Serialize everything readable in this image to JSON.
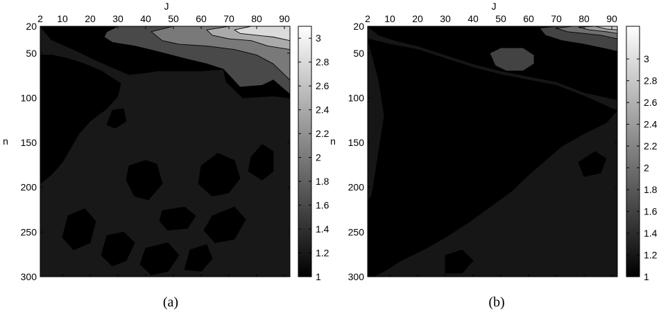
{
  "figure": {
    "caption_a": "(a)",
    "caption_b": "(b)"
  },
  "colormap": {
    "low": "#000000",
    "high": "#ffffff",
    "contour_line": "#000000"
  },
  "chart_data": [
    {
      "type": "heatmap",
      "panel": "(a)",
      "title": "",
      "xlabel": "J",
      "ylabel": "n",
      "x_ticks": [
        2,
        10,
        20,
        30,
        40,
        50,
        60,
        70,
        80,
        90
      ],
      "y_ticks": [
        20,
        50,
        100,
        150,
        200,
        250,
        300
      ],
      "xlim": [
        2,
        92
      ],
      "ylim": [
        20,
        300
      ],
      "y_reversed": true,
      "x_axis_position": "top",
      "colorbar": {
        "ticks": [
          1,
          1.2,
          1.4,
          1.6,
          1.8,
          2,
          2.2,
          2.4,
          2.6,
          2.8,
          3
        ],
        "range": [
          1,
          3.1
        ]
      },
      "contour_levels": [
        1.25,
        1.6,
        2.0,
        2.4,
        2.8
      ],
      "colormap": "gray",
      "grid": false,
      "layer_levels": [
        1.2,
        1.6,
        2.0,
        2.4,
        2.8
      ],
      "regions": [
        {
          "level": 1.2,
          "polygon": [
            [
              2,
              20
            ],
            [
              6,
              35
            ],
            [
              14,
              46
            ],
            [
              22,
              58
            ],
            [
              28,
              66
            ],
            [
              34,
              74
            ],
            [
              40,
              72
            ],
            [
              44,
              70
            ],
            [
              52,
              70
            ],
            [
              60,
              70
            ],
            [
              68,
              68
            ],
            [
              69,
              82
            ],
            [
              75,
              100
            ],
            [
              86,
              98
            ],
            [
              92,
              100
            ],
            [
              92,
              300
            ],
            [
              2,
              300
            ]
          ]
        },
        {
          "level": 1.6,
          "polygon": [
            [
              26,
              26
            ],
            [
              30,
              20
            ],
            [
              92,
              20
            ],
            [
              92,
              96
            ],
            [
              86,
              80
            ],
            [
              82,
              86
            ],
            [
              74,
              88
            ],
            [
              68,
              68
            ],
            [
              62,
              62
            ],
            [
              54,
              56
            ],
            [
              44,
              48
            ],
            [
              36,
              42
            ],
            [
              28,
              38
            ],
            [
              25,
              32
            ]
          ]
        },
        {
          "level": 2.0,
          "polygon": [
            [
              42,
              26
            ],
            [
              50,
              20
            ],
            [
              92,
              20
            ],
            [
              92,
              80
            ],
            [
              86,
              62
            ],
            [
              80,
              52
            ],
            [
              72,
              46
            ],
            [
              62,
              42
            ],
            [
              52,
              40
            ],
            [
              46,
              36
            ]
          ]
        },
        {
          "level": 2.4,
          "polygon": [
            [
              62,
              24
            ],
            [
              70,
              20
            ],
            [
              92,
              20
            ],
            [
              92,
              46
            ],
            [
              84,
              42
            ],
            [
              78,
              36
            ],
            [
              70,
              34
            ],
            [
              64,
              30
            ]
          ]
        },
        {
          "level": 2.8,
          "polygon": [
            [
              72,
              24
            ],
            [
              78,
              20
            ],
            [
              92,
              20
            ],
            [
              92,
              36
            ],
            [
              86,
              32
            ],
            [
              80,
              30
            ],
            [
              74,
              28
            ]
          ]
        }
      ],
      "dark_blobs": [
        {
          "level": 1.0,
          "polygon": [
            [
              2,
              52
            ],
            [
              6,
              52
            ],
            [
              12,
              56
            ],
            [
              18,
              62
            ],
            [
              24,
              70
            ],
            [
              28,
              78
            ],
            [
              31,
              84
            ],
            [
              30,
              98
            ],
            [
              26,
              112
            ],
            [
              20,
              126
            ],
            [
              16,
              140
            ],
            [
              13,
              156
            ],
            [
              10,
              172
            ],
            [
              6,
              186
            ],
            [
              2,
              196
            ]
          ]
        },
        {
          "level": 1.0,
          "polygon": [
            [
              28,
              114
            ],
            [
              32,
              112
            ],
            [
              33,
              126
            ],
            [
              29,
              134
            ],
            [
              26,
              130
            ]
          ]
        },
        {
          "level": 1.0,
          "polygon": [
            [
              34,
              176
            ],
            [
              40,
              170
            ],
            [
              44,
              174
            ],
            [
              46,
              196
            ],
            [
              41,
              214
            ],
            [
              36,
              210
            ],
            [
              33,
              192
            ]
          ]
        },
        {
          "level": 1.0,
          "polygon": [
            [
              46,
              226
            ],
            [
              54,
              222
            ],
            [
              58,
              232
            ],
            [
              55,
              246
            ],
            [
              48,
              248
            ],
            [
              45,
              238
            ]
          ]
        },
        {
          "level": 1.0,
          "polygon": [
            [
              60,
              176
            ],
            [
              66,
              162
            ],
            [
              72,
              170
            ],
            [
              74,
              190
            ],
            [
              70,
              206
            ],
            [
              64,
              210
            ],
            [
              59,
              196
            ]
          ]
        },
        {
          "level": 1.0,
          "polygon": [
            [
              64,
              232
            ],
            [
              72,
              222
            ],
            [
              76,
              236
            ],
            [
              72,
              258
            ],
            [
              65,
              262
            ],
            [
              61,
              248
            ]
          ]
        },
        {
          "level": 1.0,
          "polygon": [
            [
              78,
              166
            ],
            [
              82,
              152
            ],
            [
              86,
              160
            ],
            [
              86,
              182
            ],
            [
              82,
              192
            ],
            [
              77,
              182
            ]
          ]
        },
        {
          "level": 1.0,
          "polygon": [
            [
              12,
              232
            ],
            [
              18,
              224
            ],
            [
              22,
              238
            ],
            [
              20,
              262
            ],
            [
              14,
              270
            ],
            [
              10,
              256
            ]
          ]
        },
        {
          "level": 1.0,
          "polygon": [
            [
              26,
              254
            ],
            [
              32,
              250
            ],
            [
              36,
              262
            ],
            [
              33,
              282
            ],
            [
              28,
              288
            ],
            [
              24,
              276
            ]
          ]
        },
        {
          "level": 1.0,
          "polygon": [
            [
              40,
              268
            ],
            [
              48,
              262
            ],
            [
              52,
              276
            ],
            [
              48,
              294
            ],
            [
              42,
              298
            ],
            [
              38,
              286
            ]
          ]
        },
        {
          "level": 1.0,
          "polygon": [
            [
              56,
              270
            ],
            [
              62,
              264
            ],
            [
              64,
              280
            ],
            [
              60,
              294
            ],
            [
              54,
              292
            ]
          ]
        }
      ]
    },
    {
      "type": "heatmap",
      "panel": "(b)",
      "title": "",
      "xlabel": "J",
      "ylabel": "n",
      "x_ticks": [
        2,
        10,
        20,
        30,
        40,
        50,
        60,
        70,
        80,
        90
      ],
      "y_ticks": [
        20,
        50,
        100,
        150,
        200,
        250,
        300
      ],
      "xlim": [
        2,
        92
      ],
      "ylim": [
        20,
        300
      ],
      "y_reversed": true,
      "x_axis_position": "top",
      "colorbar": {
        "ticks": [
          1,
          1.2,
          1.4,
          1.6,
          1.8,
          2,
          2.2,
          2.4,
          2.6,
          2.8,
          3
        ],
        "range": [
          1,
          3.3
        ]
      },
      "contour_levels": [
        1.25,
        1.6,
        2.0,
        2.4,
        2.8
      ],
      "colormap": "gray",
      "grid": false,
      "layer_levels": [
        1.2,
        1.6,
        2.0,
        2.4,
        2.8
      ],
      "regions": [
        {
          "level": 1.2,
          "polygon": [
            [
              2,
              20
            ],
            [
              6,
              30
            ],
            [
              12,
              36
            ],
            [
              20,
              42
            ],
            [
              30,
              52
            ],
            [
              40,
              62
            ],
            [
              50,
              70
            ],
            [
              60,
              76
            ],
            [
              70,
              82
            ],
            [
              80,
              94
            ],
            [
              92,
              102
            ],
            [
              92,
              300
            ],
            [
              2,
              300
            ]
          ]
        },
        {
          "level": 1.6,
          "polygon": [
            [
              46,
              50
            ],
            [
              50,
              44
            ],
            [
              58,
              44
            ],
            [
              62,
              52
            ],
            [
              62,
              62
            ],
            [
              58,
              70
            ],
            [
              52,
              70
            ],
            [
              48,
              64
            ]
          ]
        },
        {
          "level": 1.6,
          "polygon": [
            [
              64,
              22
            ],
            [
              70,
              20
            ],
            [
              92,
              20
            ],
            [
              92,
              48
            ],
            [
              86,
              44
            ],
            [
              80,
              40
            ],
            [
              72,
              36
            ],
            [
              66,
              30
            ]
          ]
        },
        {
          "level": 2.0,
          "polygon": [
            [
              70,
              22
            ],
            [
              76,
              20
            ],
            [
              92,
              20
            ],
            [
              92,
              34
            ],
            [
              86,
              30
            ],
            [
              80,
              28
            ],
            [
              74,
              26
            ]
          ]
        },
        {
          "level": 2.4,
          "polygon": [
            [
              78,
              21
            ],
            [
              84,
              20
            ],
            [
              92,
              20
            ],
            [
              92,
              28
            ],
            [
              88,
              26
            ],
            [
              82,
              24
            ]
          ]
        },
        {
          "level": 2.8,
          "polygon": [
            [
              84,
              20
            ],
            [
              92,
              20
            ],
            [
              92,
              24
            ],
            [
              88,
              23
            ]
          ]
        }
      ],
      "dark_blobs": [
        {
          "level": 1.0,
          "polygon": [
            [
              2,
              34
            ],
            [
              10,
              40
            ],
            [
              20,
              46
            ],
            [
              30,
              56
            ],
            [
              40,
              66
            ],
            [
              50,
              74
            ],
            [
              60,
              80
            ],
            [
              70,
              86
            ],
            [
              80,
              98
            ],
            [
              90,
              112
            ],
            [
              92,
              114
            ],
            [
              88,
              128
            ],
            [
              80,
              140
            ],
            [
              72,
              154
            ],
            [
              66,
              170
            ],
            [
              60,
              186
            ],
            [
              54,
              204
            ],
            [
              46,
              222
            ],
            [
              38,
              240
            ],
            [
              30,
              256
            ],
            [
              22,
              270
            ],
            [
              14,
              282
            ],
            [
              8,
              294
            ],
            [
              4,
              300
            ],
            [
              2,
              300
            ],
            [
              2,
              230
            ],
            [
              4,
              200
            ],
            [
              6,
              160
            ],
            [
              8,
              120
            ],
            [
              6,
              80
            ]
          ]
        },
        {
          "level": 1.0,
          "polygon": [
            [
              2,
              216
            ],
            [
              4,
              206
            ],
            [
              8,
              214
            ],
            [
              6,
              240
            ],
            [
              2,
              246
            ]
          ]
        },
        {
          "level": 1.0,
          "polygon": [
            [
              30,
              276
            ],
            [
              36,
              270
            ],
            [
              40,
              282
            ],
            [
              36,
              296
            ],
            [
              30,
              296
            ]
          ]
        },
        {
          "level": 1.0,
          "polygon": [
            [
              78,
              172
            ],
            [
              84,
              160
            ],
            [
              88,
              168
            ],
            [
              86,
              184
            ],
            [
              80,
              188
            ]
          ]
        }
      ]
    }
  ]
}
